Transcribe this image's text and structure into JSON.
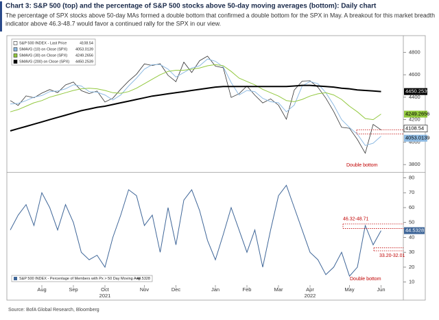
{
  "header": {
    "title": "Chart 3: S&P 500 (top) and the percentage of S&P 500 stocks above 50-day moving averages (bottom): Daily chart",
    "subtitle": [
      "The percentage of SPX stocks above 50-day MAs formed a double bottom that confirmed a double bottom for the SPX in May. A breakout for this market breadth",
      "indicator above 46.3-48.7 would favor a continued rally for the SPX in our view."
    ]
  },
  "source": "Source: BofA Global Research, Bloomberg",
  "chart_data": [
    {
      "type": "line",
      "ylim": [
        3740,
        4930
      ],
      "yticks": [
        3800,
        4000,
        4200,
        4400,
        4600,
        4800
      ],
      "annotations": [
        "Double bottom"
      ],
      "series": [
        {
          "name": "S&P 500 INDEX - Last Price",
          "color": "#333333",
          "values": [
            4370,
            4327,
            4412,
            4395,
            4436,
            4468,
            4441,
            4509,
            4535,
            4458,
            4432,
            4455,
            4357,
            4391,
            4471,
            4544,
            4605,
            4697,
            4682,
            4698,
            4595,
            4538,
            4712,
            4620,
            4725,
            4766,
            4677,
            4662,
            4398,
            4431,
            4500,
            4418,
            4349,
            4385,
            4329,
            4204,
            4463,
            4543,
            4546,
            4488,
            4392,
            4272,
            4132,
            4123,
            4024,
            3901,
            4158,
            4108.54
          ]
        },
        {
          "name": "SMAVG (10)  on Close (SPX)",
          "color": "#8fbbe3",
          "values": [
            4340,
            4345,
            4370,
            4400,
            4415,
            4450,
            4455,
            4475,
            4510,
            4500,
            4450,
            4445,
            4420,
            4375,
            4420,
            4500,
            4570,
            4650,
            4690,
            4690,
            4650,
            4580,
            4620,
            4660,
            4680,
            4740,
            4720,
            4670,
            4530,
            4420,
            4460,
            4450,
            4390,
            4360,
            4350,
            4270,
            4330,
            4500,
            4540,
            4520,
            4440,
            4330,
            4200,
            4130,
            4070,
            3970,
            3990,
            4053.0139
          ]
        },
        {
          "name": "SMAVG (30)  on Close (SPX)",
          "color": "#92c83e",
          "values": [
            4270,
            4290,
            4320,
            4350,
            4370,
            4400,
            4420,
            4440,
            4460,
            4475,
            4480,
            4475,
            4460,
            4440,
            4435,
            4450,
            4480,
            4520,
            4560,
            4600,
            4630,
            4640,
            4640,
            4650,
            4660,
            4680,
            4690,
            4680,
            4630,
            4570,
            4540,
            4510,
            4470,
            4440,
            4410,
            4370,
            4360,
            4380,
            4410,
            4430,
            4440,
            4420,
            4380,
            4320,
            4270,
            4210,
            4200,
            4249.2656
          ]
        },
        {
          "name": "SMAVG (200) on Close (SPX)",
          "color": "#000000",
          "values": [
            4100,
            4120,
            4140,
            4160,
            4180,
            4200,
            4220,
            4240,
            4260,
            4280,
            4295,
            4310,
            4320,
            4335,
            4350,
            4365,
            4380,
            4395,
            4410,
            4420,
            4430,
            4440,
            4450,
            4460,
            4470,
            4480,
            4490,
            4495,
            4495,
            4495,
            4495,
            4495,
            4495,
            4495,
            4495,
            4495,
            4500,
            4505,
            4505,
            4500,
            4495,
            4490,
            4480,
            4475,
            4465,
            4460,
            4455,
            4450.2539
          ]
        }
      ]
    },
    {
      "type": "line",
      "ylim": [
        8,
        83
      ],
      "yticks": [
        10,
        20,
        30,
        40,
        50,
        60,
        70,
        80
      ],
      "categories": [
        null,
        null,
        null,
        null,
        "Aug",
        null,
        null,
        null,
        "Sep",
        null,
        null,
        null,
        "Oct",
        null,
        null,
        null,
        null,
        "Nov",
        null,
        null,
        null,
        "Dec",
        null,
        null,
        null,
        null,
        "Jan",
        null,
        null,
        null,
        "Feb",
        null,
        null,
        null,
        "Mar",
        null,
        null,
        null,
        "Apr",
        null,
        null,
        null,
        null,
        "May",
        null,
        null,
        null,
        "Jun"
      ],
      "year_labels": [
        "2021",
        "2022"
      ],
      "annotations": [
        "46.32-48.71",
        "33.20-32.01",
        "Double bottom"
      ],
      "series": [
        {
          "name": "S&P 500 INDEX - Percentage of Members with Px > 50 Day Moving Avg",
          "color": "#3f6698",
          "values": [
            45,
            55,
            62,
            48,
            70,
            60,
            45,
            62,
            50,
            30,
            25,
            28,
            20,
            40,
            55,
            72,
            68,
            48,
            55,
            30,
            60,
            35,
            65,
            72,
            58,
            38,
            25,
            42,
            60,
            45,
            30,
            45,
            20,
            45,
            68,
            75,
            60,
            45,
            30,
            25,
            15,
            20,
            30,
            14,
            20,
            48,
            35,
            44.5328
          ]
        }
      ]
    }
  ]
}
